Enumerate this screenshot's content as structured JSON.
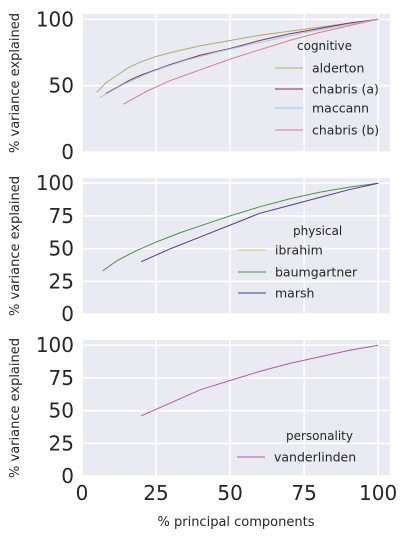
{
  "chart_data": [
    {
      "type": "line",
      "ylabel": "% variance explained",
      "xlabel": "",
      "xlim": [
        0,
        104
      ],
      "ylim": [
        0,
        104
      ],
      "xticks": [
        0,
        25,
        50,
        75,
        100
      ],
      "yticks": [
        0,
        50,
        100
      ],
      "show_x_ticklabels": false,
      "grid": true,
      "legend": {
        "title": "cognitive",
        "placement": "right"
      },
      "series": [
        {
          "name": "alderton",
          "color": "#a9ad6b",
          "x": [
            5,
            8,
            12,
            16,
            20,
            25,
            30,
            40,
            50,
            60,
            70,
            80,
            90,
            100
          ],
          "y": [
            45,
            52,
            58,
            64,
            68,
            72,
            75,
            80,
            84,
            88,
            91,
            94,
            97,
            100
          ]
        },
        {
          "name": "chabris (a)",
          "color": "#8b2f55",
          "x": [
            8,
            12,
            16,
            20,
            25,
            30,
            40,
            50,
            60,
            70,
            80,
            90,
            100
          ],
          "y": [
            44,
            49,
            54,
            58,
            62,
            66,
            73,
            78,
            84,
            89,
            93,
            97,
            100
          ]
        },
        {
          "name": "maccann",
          "color": "#9fc9e3",
          "x": [
            6,
            10,
            14,
            18,
            22,
            28,
            35,
            45,
            55,
            65,
            75,
            85,
            100
          ],
          "y": [
            41,
            46,
            51,
            55,
            59,
            64,
            69,
            75,
            80,
            85,
            90,
            94,
            100
          ]
        },
        {
          "name": "chabris (b)",
          "color": "#e07a8c",
          "x": [
            14,
            18,
            22,
            26,
            30,
            35,
            40,
            50,
            60,
            70,
            80,
            90,
            100
          ],
          "y": [
            36,
            41,
            46,
            50,
            54,
            58,
            62,
            70,
            77,
            84,
            90,
            95,
            100
          ]
        }
      ]
    },
    {
      "type": "line",
      "ylabel": "% variance explained",
      "xlabel": "",
      "xlim": [
        0,
        104
      ],
      "ylim": [
        0,
        104
      ],
      "xticks": [
        0,
        25,
        50,
        75,
        100
      ],
      "yticks": [
        0,
        25,
        50,
        75,
        100
      ],
      "show_x_ticklabels": false,
      "grid": true,
      "legend": {
        "title": "physical",
        "placement": "right"
      },
      "series": [
        {
          "name": "ibrahim",
          "color": "#c8c870",
          "x": [],
          "y": []
        },
        {
          "name": "baumgartner",
          "color": "#4f8f4f",
          "x": [
            7,
            12,
            18,
            25,
            33,
            42,
            50,
            60,
            70,
            80,
            90,
            100
          ],
          "y": [
            33,
            41,
            48,
            55,
            62,
            69,
            75,
            82,
            88,
            93,
            97,
            100
          ]
        },
        {
          "name": "marsh",
          "color": "#4a3f8f",
          "x": [
            20,
            30,
            40,
            50,
            60,
            70,
            80,
            90,
            100
          ],
          "y": [
            40,
            50,
            59,
            68,
            77,
            83,
            89,
            95,
            100
          ]
        }
      ]
    },
    {
      "type": "line",
      "ylabel": "% variance explained",
      "xlabel": "% principal components",
      "xlim": [
        0,
        104
      ],
      "ylim": [
        0,
        104
      ],
      "xticks": [
        0,
        25,
        50,
        75,
        100
      ],
      "yticks": [
        0,
        25,
        50,
        75,
        100
      ],
      "show_x_ticklabels": true,
      "grid": true,
      "legend": {
        "title": "personality",
        "placement": "bottom-right"
      },
      "series": [
        {
          "name": "vanderlinden",
          "color": "#b05aa6",
          "x": [
            20,
            30,
            40,
            50,
            60,
            70,
            80,
            90,
            100
          ],
          "y": [
            46,
            56,
            66,
            73,
            80,
            86,
            91,
            96,
            100
          ]
        }
      ]
    }
  ]
}
